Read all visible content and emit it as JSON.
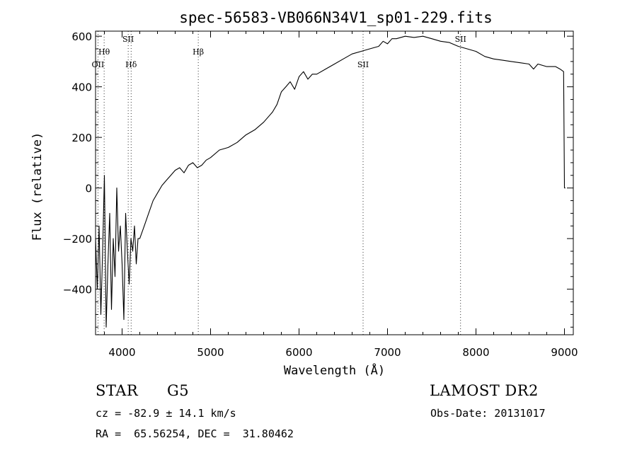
{
  "chart_data": {
    "type": "line",
    "title": "spec-56583-VB066N34V1_sp01-229.fits",
    "xlabel": "Wavelength (Å)",
    "ylabel": "Flux (relative)",
    "xlim": [
      3700,
      9100
    ],
    "ylim": [
      -580,
      620
    ],
    "xticks": [
      4000,
      5000,
      6000,
      7000,
      8000,
      9000
    ],
    "yticks": [
      -400,
      -200,
      0,
      200,
      400,
      600
    ],
    "series": [
      {
        "x": [
          3700,
          3720,
          3740,
          3760,
          3780,
          3800,
          3820,
          3840,
          3860,
          3880,
          3900,
          3920,
          3940,
          3960,
          3980,
          4000,
          4020,
          4040,
          4060,
          4080,
          4100,
          4120,
          4140,
          4160,
          4180,
          4200,
          4250,
          4300,
          4350,
          4400,
          4450,
          4500,
          4550,
          4600,
          4650,
          4700,
          4750,
          4800,
          4850,
          4900,
          4950,
          5000,
          5100,
          5200,
          5300,
          5400,
          5500,
          5600,
          5700,
          5750,
          5800,
          5850,
          5900,
          5950,
          6000,
          6050,
          6100,
          6150,
          6200,
          6300,
          6400,
          6500,
          6600,
          6700,
          6800,
          6900,
          6950,
          7000,
          7050,
          7100,
          7200,
          7300,
          7400,
          7500,
          7600,
          7700,
          7800,
          7900,
          8000,
          8100,
          8200,
          8300,
          8400,
          8500,
          8600,
          8650,
          8700,
          8800,
          8900,
          8950,
          8990,
          9000,
          9010
        ],
        "y": [
          -200,
          -400,
          -150,
          -500,
          -250,
          50,
          -550,
          -300,
          -100,
          -480,
          -200,
          -350,
          0,
          -250,
          -150,
          -300,
          -520,
          -100,
          -250,
          -380,
          -200,
          -250,
          -150,
          -300,
          -200,
          -200,
          -150,
          -100,
          -50,
          -20,
          10,
          30,
          50,
          70,
          80,
          60,
          90,
          100,
          80,
          90,
          110,
          120,
          150,
          160,
          180,
          210,
          230,
          260,
          300,
          330,
          380,
          400,
          420,
          390,
          440,
          460,
          430,
          450,
          450,
          470,
          490,
          510,
          530,
          540,
          550,
          560,
          580,
          570,
          590,
          590,
          600,
          595,
          600,
          590,
          580,
          575,
          560,
          550,
          540,
          520,
          510,
          505,
          500,
          495,
          490,
          470,
          490,
          480,
          480,
          470,
          460,
          0,
          0
        ]
      }
    ],
    "line_markers": [
      {
        "label": "OII",
        "x": 3727,
        "label_y": 478
      },
      {
        "label": "Hθ",
        "x": 3797,
        "label_y": 528
      },
      {
        "label": "SII",
        "x": 4069,
        "label_y": 578
      },
      {
        "label": "Hδ",
        "x": 4102,
        "label_y": 478
      },
      {
        "label": "Hβ",
        "x": 4861,
        "label_y": 528
      },
      {
        "label": "SII",
        "x": 6724,
        "label_y": 478
      },
      {
        "label": "SII",
        "x": 7826,
        "label_y": 578
      }
    ],
    "grid": false
  },
  "info": {
    "class": "STAR",
    "subclass": "G5",
    "survey": "LAMOST DR2",
    "cz": "cz = -82.9 ± 14.1 km/s",
    "obs_date": "Obs-Date: 20131017",
    "coords": "RA =  65.56254, DEC =  31.80462"
  }
}
